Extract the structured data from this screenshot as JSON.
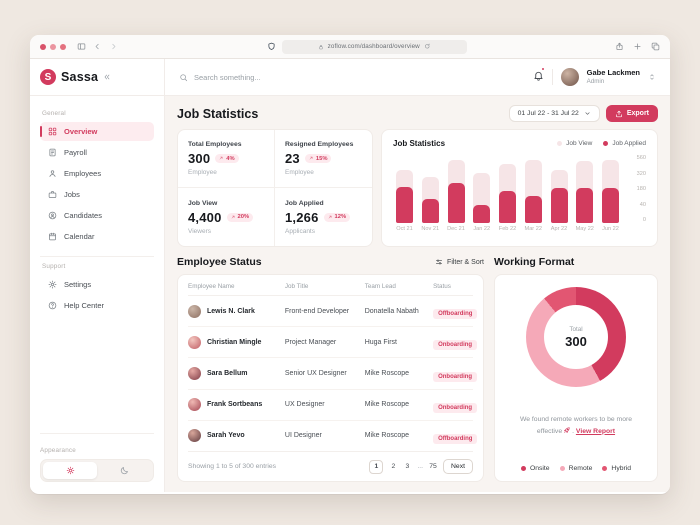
{
  "theme": {
    "primary": "#d23b5e",
    "primary_soft": "#fdeaee",
    "bar_light": "#f6e5e7",
    "content_bg": "#f8f4f1",
    "desktop_bg": "#efe8e1"
  },
  "browser": {
    "url": "zoflow.com/dashboard/overview"
  },
  "brand": {
    "name": "Sassa"
  },
  "header": {
    "search_placeholder": "Search something...",
    "user": {
      "name": "Gabe Lackmen",
      "role": "Admin"
    }
  },
  "sidebar": {
    "sections": [
      {
        "label": "General",
        "items": [
          {
            "label": "Overview",
            "icon": "overview",
            "active": true
          },
          {
            "label": "Payroll",
            "icon": "payroll",
            "active": false
          },
          {
            "label": "Employees",
            "icon": "employees",
            "active": false
          },
          {
            "label": "Jobs",
            "icon": "jobs",
            "active": false
          },
          {
            "label": "Candidates",
            "icon": "candidates",
            "active": false
          },
          {
            "label": "Calendar",
            "icon": "calendar",
            "active": false
          }
        ]
      },
      {
        "label": "Support",
        "items": [
          {
            "label": "Settings",
            "icon": "settings",
            "active": false
          },
          {
            "label": "Help Center",
            "icon": "help",
            "active": false
          }
        ]
      }
    ],
    "appearance": {
      "label": "Appearance",
      "modes": [
        "light",
        "dark"
      ],
      "active_mode": "light"
    }
  },
  "page": {
    "title": "Job Statistics",
    "date_range": "01 Jul 22 - 31 Jul 22",
    "export_label": "Export"
  },
  "stats": [
    {
      "label": "Total Employees",
      "value": "300",
      "delta": "4%",
      "sub": "Employee"
    },
    {
      "label": "Resigned Employees",
      "value": "23",
      "delta": "15%",
      "sub": "Employee"
    },
    {
      "label": "Job View",
      "value": "4,400",
      "delta": "20%",
      "sub": "Viewers"
    },
    {
      "label": "Job Applied",
      "value": "1,266",
      "delta": "12%",
      "sub": "Applicants"
    }
  ],
  "chart_data": [
    {
      "type": "bar",
      "title": "Job Statistics",
      "categories": [
        "Oct 21",
        "Nov 21",
        "Dec 21",
        "Jan 22",
        "Feb 22",
        "Mar 22",
        "Apr 22",
        "May 22",
        "Jun 22"
      ],
      "series": [
        {
          "name": "Job View",
          "color": "#f6e5e7",
          "values": [
            440,
            380,
            515,
            415,
            490,
            520,
            440,
            510,
            520
          ]
        },
        {
          "name": "Job Applied",
          "color": "#d23b5e",
          "values": [
            300,
            200,
            330,
            145,
            265,
            225,
            290,
            290,
            285
          ]
        }
      ],
      "ylim": [
        0,
        560
      ],
      "y_ticks": [
        "560",
        "320",
        "180",
        "40",
        "0"
      ],
      "grid": false,
      "legend_position": "top-right"
    },
    {
      "type": "pie",
      "title": "Working Format",
      "center_label": "Total",
      "center_value": "300",
      "segments": [
        {
          "name": "Onsite",
          "percent": 42,
          "color": "#d23b5e"
        },
        {
          "name": "Remote",
          "percent": 47,
          "color": "#f5a9b8"
        },
        {
          "name": "Hybrid",
          "percent": 11,
          "color": "#e25672"
        }
      ]
    }
  ],
  "employee_status": {
    "title": "Employee Status",
    "filter_label": "Filter & Sort",
    "columns": [
      "Employee Name",
      "Job Title",
      "Team Lead",
      "Status"
    ],
    "rows": [
      {
        "name": "Lewis N. Clark",
        "job": "Front-end Developer",
        "lead": "Donatella Nabath",
        "status": "Offboarding"
      },
      {
        "name": "Christian Mingle",
        "job": "Project Manager",
        "lead": "Huga First",
        "status": "Onboarding"
      },
      {
        "name": "Sara Bellum",
        "job": "Senior UX Designer",
        "lead": "Mike Roscope",
        "status": "Onboarding"
      },
      {
        "name": "Frank Sortbeans",
        "job": "UX Designer",
        "lead": "Mike Roscope",
        "status": "Onboarding"
      },
      {
        "name": "Sarah Yevo",
        "job": "UI Designer",
        "lead": "Mike Roscope",
        "status": "Offboarding"
      }
    ],
    "footer": "Showing 1 to 5 of 300 entries",
    "pagination": {
      "pages": [
        "1",
        "2",
        "3",
        "...",
        "75"
      ],
      "active": "1",
      "next_label": "Next"
    }
  },
  "working_format": {
    "title": "Working Format",
    "center": {
      "label": "Total",
      "value": "300"
    },
    "note": "We found remote workers to be more effective",
    "note_separator": ". ",
    "report_link": "View Report"
  }
}
